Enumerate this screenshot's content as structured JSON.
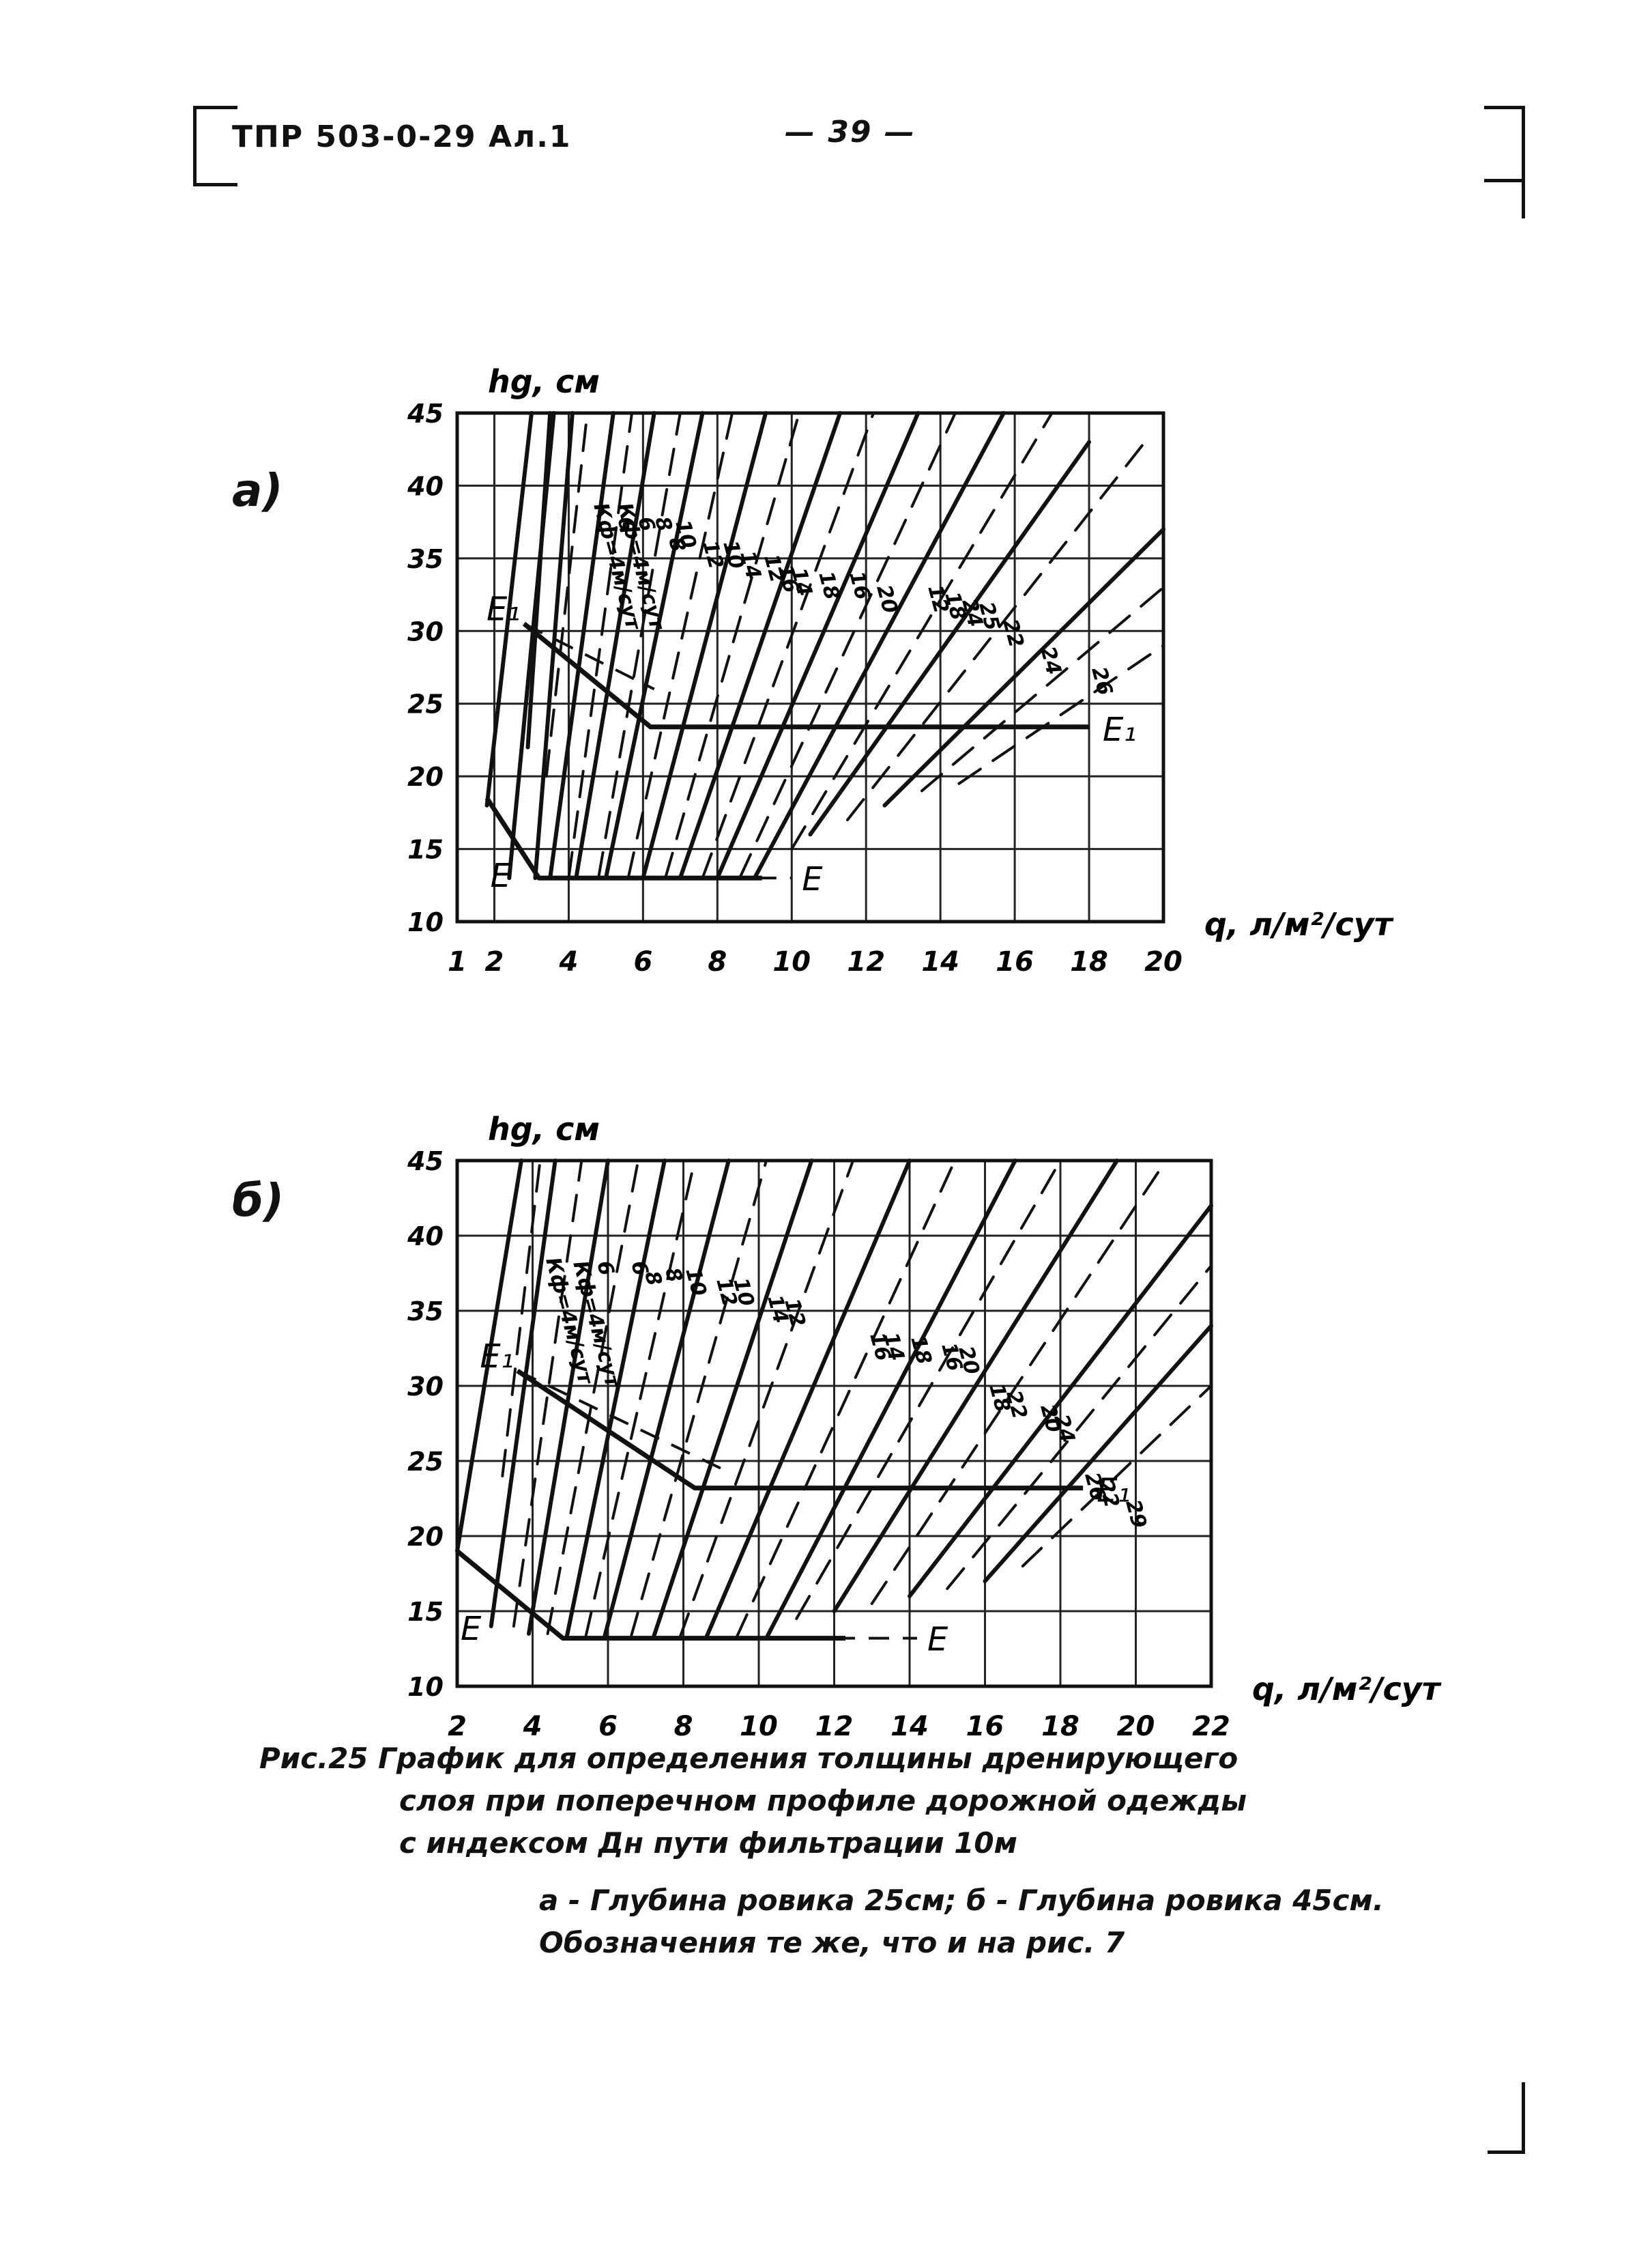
{
  "header": {
    "doc_code": "ТПР 503-0-29 Ал.1",
    "page_number": "— 39 —"
  },
  "chart_data": [
    {
      "panel": "а)",
      "type": "line",
      "ylabel": "hg, см",
      "xlabel": "q, л/м²/сут",
      "xlim": [
        1,
        20
      ],
      "ylim": [
        10,
        45
      ],
      "x_ticks": [
        1,
        2,
        4,
        6,
        8,
        10,
        12,
        14,
        16,
        18,
        20
      ],
      "x_tick_labels": [
        "1",
        "2",
        "4",
        "6",
        "8",
        "10",
        "12",
        "14",
        "16",
        "18",
        "20"
      ],
      "y_ticks": [
        10,
        15,
        20,
        25,
        30,
        35,
        40,
        45
      ],
      "y_tick_labels": [
        "10",
        "15",
        "20",
        "25",
        "30",
        "35",
        "40",
        "45"
      ],
      "grid": true,
      "curve_labels": [
        "Кф=4м/сут",
        "Кф=4м/сут",
        "6",
        "6",
        "8",
        "10",
        "8",
        "12",
        "10",
        "14",
        "12",
        "16",
        "14",
        "18",
        "16",
        "20",
        "12",
        "18",
        "24",
        "25",
        "22",
        "24",
        "26"
      ],
      "boundary_E1": {
        "label": "E₁",
        "points": [
          [
            2.8,
            30.5
          ],
          [
            6.2,
            23.4
          ],
          [
            18.0,
            23.4
          ]
        ]
      },
      "boundary_E": {
        "label": "E",
        "points": [
          [
            1.8,
            18.5
          ],
          [
            3.2,
            13.0
          ],
          [
            9.2,
            13.0
          ]
        ]
      },
      "dashed_E1": [
        [
          2.8,
          30.5
        ],
        [
          6.3,
          26.0
        ]
      ],
      "dashed_E": [
        [
          7.2,
          13.0
        ],
        [
          10.0,
          13.0
        ]
      ],
      "lines": [
        {
          "x1": 1.8,
          "y1": 18,
          "x2": 3.0,
          "y2": 45,
          "style": "solid"
        },
        {
          "x1": 2.9,
          "y1": 22,
          "x2": 3.5,
          "y2": 45,
          "style": "solid"
        },
        {
          "x1": 2.4,
          "y1": 13,
          "x2": 3.6,
          "y2": 45,
          "style": "solid"
        },
        {
          "x1": 3.1,
          "y1": 13,
          "x2": 4.1,
          "y2": 45,
          "style": "solid"
        },
        {
          "x1": 3.4,
          "y1": 20,
          "x2": 4.5,
          "y2": 45,
          "style": "dashed"
        },
        {
          "x1": 3.5,
          "y1": 13,
          "x2": 5.2,
          "y2": 45,
          "style": "solid"
        },
        {
          "x1": 4.0,
          "y1": 13,
          "x2": 5.7,
          "y2": 45,
          "style": "dashed"
        },
        {
          "x1": 4.2,
          "y1": 13,
          "x2": 6.3,
          "y2": 45,
          "style": "solid"
        },
        {
          "x1": 4.8,
          "y1": 13,
          "x2": 7.0,
          "y2": 45,
          "style": "dashed"
        },
        {
          "x1": 5.0,
          "y1": 13,
          "x2": 7.6,
          "y2": 45,
          "style": "solid"
        },
        {
          "x1": 5.6,
          "y1": 13,
          "x2": 8.4,
          "y2": 45,
          "style": "dashed"
        },
        {
          "x1": 6.0,
          "y1": 13,
          "x2": 9.3,
          "y2": 45,
          "style": "solid"
        },
        {
          "x1": 6.6,
          "y1": 13,
          "x2": 10.2,
          "y2": 45,
          "style": "dashed"
        },
        {
          "x1": 7.0,
          "y1": 13,
          "x2": 11.3,
          "y2": 45,
          "style": "solid"
        },
        {
          "x1": 7.6,
          "y1": 13,
          "x2": 12.2,
          "y2": 45,
          "style": "dashed"
        },
        {
          "x1": 8.0,
          "y1": 13,
          "x2": 13.4,
          "y2": 45,
          "style": "solid"
        },
        {
          "x1": 8.6,
          "y1": 13,
          "x2": 14.4,
          "y2": 45,
          "style": "dashed"
        },
        {
          "x1": 9.0,
          "y1": 13,
          "x2": 15.7,
          "y2": 45,
          "style": "solid"
        },
        {
          "x1": 10.0,
          "y1": 15,
          "x2": 17.0,
          "y2": 45,
          "style": "dashed"
        },
        {
          "x1": 10.5,
          "y1": 16,
          "x2": 18.0,
          "y2": 43,
          "style": "solid"
        },
        {
          "x1": 11.5,
          "y1": 17,
          "x2": 19.5,
          "y2": 43,
          "style": "dashed"
        },
        {
          "x1": 12.5,
          "y1": 18,
          "x2": 20.0,
          "y2": 37,
          "style": "solid"
        },
        {
          "x1": 13.5,
          "y1": 19,
          "x2": 20.0,
          "y2": 33,
          "style": "dashed"
        },
        {
          "x1": 14.5,
          "y1": 19.5,
          "x2": 20.0,
          "y2": 29,
          "style": "dashed"
        }
      ]
    },
    {
      "panel": "б)",
      "type": "line",
      "ylabel": "hg, см",
      "xlabel": "q, л/м²/сут",
      "xlim": [
        2,
        22
      ],
      "ylim": [
        10,
        45
      ],
      "x_ticks": [
        2,
        4,
        6,
        8,
        10,
        12,
        14,
        16,
        18,
        20,
        22
      ],
      "x_tick_labels": [
        "2",
        "4",
        "6",
        "8",
        "10",
        "12",
        "14",
        "16",
        "18",
        "20",
        "22"
      ],
      "y_ticks": [
        10,
        15,
        20,
        25,
        30,
        35,
        40,
        45
      ],
      "y_tick_labels": [
        "10",
        "15",
        "20",
        "25",
        "30",
        "35",
        "40",
        "45"
      ],
      "grid": true,
      "curve_labels": [
        "Кф=4м/сут",
        "Кф=4м/сут",
        "6",
        "6",
        "8",
        "8",
        "10",
        "12",
        "10",
        "14",
        "12",
        "16",
        "14",
        "18",
        "16",
        "20",
        "18",
        "22",
        "20",
        "24",
        "26",
        "22",
        "29"
      ],
      "boundary_E1": {
        "label": "E₁",
        "points": [
          [
            3.6,
            31.0
          ],
          [
            8.3,
            23.2
          ],
          [
            18.6,
            23.2
          ]
        ]
      },
      "boundary_E": {
        "label": "E",
        "points": [
          [
            2.0,
            19.0
          ],
          [
            4.8,
            13.2
          ],
          [
            12.3,
            13.2
          ]
        ]
      },
      "dashed_E1": [
        [
          3.6,
          31.0
        ],
        [
          9.0,
          24.5
        ]
      ],
      "dashed_E": [
        [
          10.2,
          13.2
        ],
        [
          14.2,
          13.2
        ]
      ],
      "lines": [
        {
          "x1": 2.0,
          "y1": 19,
          "x2": 3.7,
          "y2": 45,
          "style": "solid"
        },
        {
          "x1": 3.2,
          "y1": 24,
          "x2": 4.2,
          "y2": 45,
          "style": "dashed"
        },
        {
          "x1": 2.9,
          "y1": 14,
          "x2": 4.6,
          "y2": 45,
          "style": "solid"
        },
        {
          "x1": 3.5,
          "y1": 14,
          "x2": 5.3,
          "y2": 45,
          "style": "dashed"
        },
        {
          "x1": 3.9,
          "y1": 13.5,
          "x2": 6.0,
          "y2": 45,
          "style": "solid"
        },
        {
          "x1": 4.4,
          "y1": 13.5,
          "x2": 6.8,
          "y2": 45,
          "style": "dashed"
        },
        {
          "x1": 4.9,
          "y1": 13.2,
          "x2": 7.5,
          "y2": 45,
          "style": "solid"
        },
        {
          "x1": 5.4,
          "y1": 13.2,
          "x2": 8.3,
          "y2": 45,
          "style": "dashed"
        },
        {
          "x1": 5.9,
          "y1": 13.2,
          "x2": 9.2,
          "y2": 45,
          "style": "solid"
        },
        {
          "x1": 6.6,
          "y1": 13.2,
          "x2": 10.2,
          "y2": 45,
          "style": "dashed"
        },
        {
          "x1": 7.2,
          "y1": 13.2,
          "x2": 11.4,
          "y2": 45,
          "style": "solid"
        },
        {
          "x1": 7.9,
          "y1": 13.2,
          "x2": 12.5,
          "y2": 45,
          "style": "dashed"
        },
        {
          "x1": 8.6,
          "y1": 13.2,
          "x2": 14.0,
          "y2": 45,
          "style": "solid"
        },
        {
          "x1": 9.4,
          "y1": 13.2,
          "x2": 15.2,
          "y2": 45,
          "style": "dashed"
        },
        {
          "x1": 10.2,
          "y1": 13.2,
          "x2": 16.8,
          "y2": 45,
          "style": "solid"
        },
        {
          "x1": 11.0,
          "y1": 14.5,
          "x2": 18.0,
          "y2": 45,
          "style": "dashed"
        },
        {
          "x1": 12.0,
          "y1": 15,
          "x2": 19.5,
          "y2": 45,
          "style": "solid"
        },
        {
          "x1": 13.0,
          "y1": 15.5,
          "x2": 20.8,
          "y2": 45,
          "style": "dashed"
        },
        {
          "x1": 14.0,
          "y1": 16,
          "x2": 22.0,
          "y2": 42,
          "style": "solid"
        },
        {
          "x1": 15.0,
          "y1": 16.5,
          "x2": 22.0,
          "y2": 38,
          "style": "dashed"
        },
        {
          "x1": 16.0,
          "y1": 17,
          "x2": 22.0,
          "y2": 34,
          "style": "solid"
        },
        {
          "x1": 17.0,
          "y1": 18,
          "x2": 22.0,
          "y2": 30,
          "style": "dashed"
        }
      ]
    }
  ],
  "caption": {
    "line1": "Рис.25 График для определения толщины дренирующего",
    "line2": "слоя при поперечном профиле дорожной одежды",
    "line3": "с индексом Дн пути фильтрации 10м",
    "line4": "а - Глубина ровика 25см; б - Глубина ровика 45см.",
    "line5": "Обозначения те же, что и на рис. 7"
  }
}
